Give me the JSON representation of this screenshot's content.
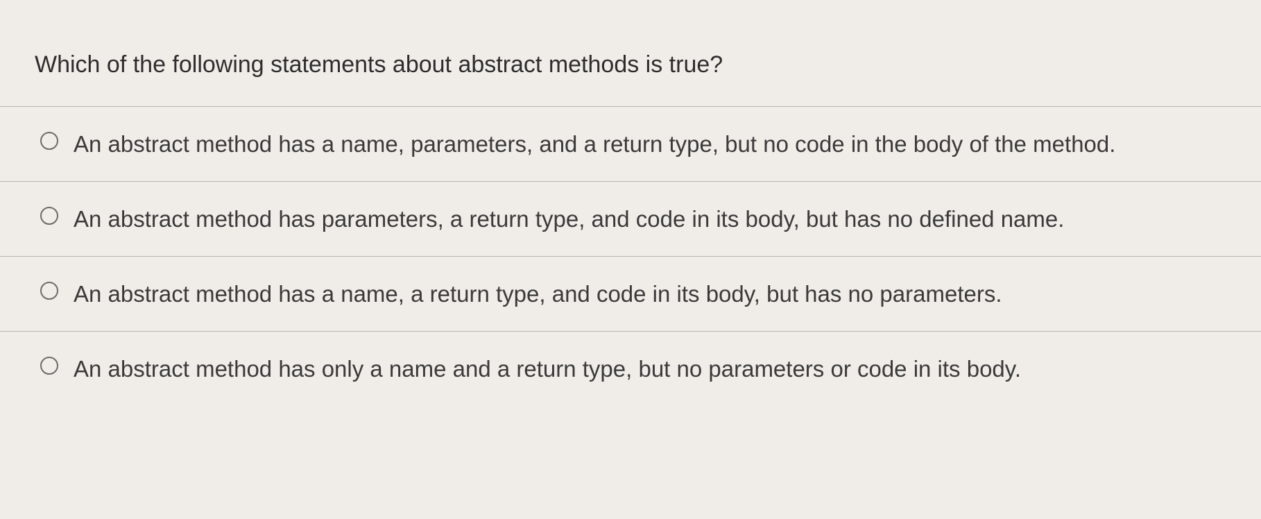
{
  "question": {
    "prompt": "Which of the following statements about abstract methods is true?",
    "options": [
      {
        "label": "An abstract method has a name, parameters, and a return type, but no code in the body of the method."
      },
      {
        "label": "An abstract method has parameters, a return type, and code in its body, but has no defined name."
      },
      {
        "label": "An abstract method has a name, a return type, and code in its body, but has no parameters."
      },
      {
        "label": "An abstract method has only a name and a return type, but no parameters or code in its body."
      }
    ]
  }
}
